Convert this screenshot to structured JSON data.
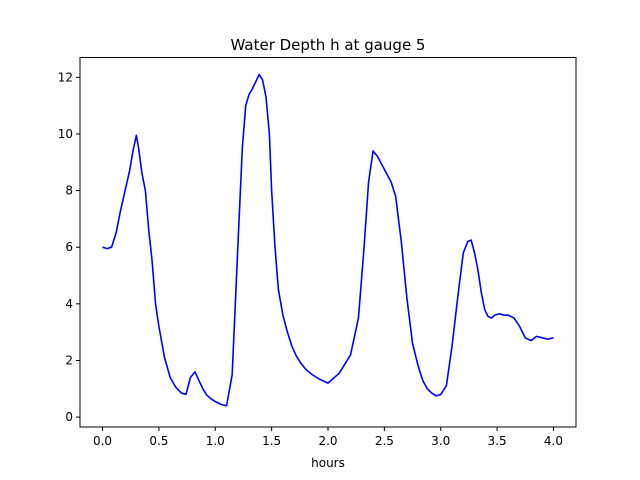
{
  "chart_data": {
    "type": "line",
    "title": "Water Depth h at gauge 5",
    "xlabel": "hours",
    "ylabel": "",
    "xlim": [
      -0.2,
      4.2
    ],
    "ylim": [
      -0.35,
      12.7
    ],
    "xticks": [
      0.0,
      0.5,
      1.0,
      1.5,
      2.0,
      2.5,
      3.0,
      3.5,
      4.0
    ],
    "xtick_labels": [
      "0.0",
      "0.5",
      "1.0",
      "1.5",
      "2.0",
      "2.5",
      "3.0",
      "3.5",
      "4.0"
    ],
    "yticks": [
      0,
      2,
      4,
      6,
      8,
      10,
      12
    ],
    "ytick_labels": [
      "0",
      "2",
      "4",
      "6",
      "8",
      "10",
      "12"
    ],
    "grid": false,
    "series": [
      {
        "color": "#0000ff",
        "x": [
          0.0,
          0.04,
          0.08,
          0.12,
          0.16,
          0.2,
          0.24,
          0.27,
          0.3,
          0.32,
          0.35,
          0.38,
          0.41,
          0.44,
          0.47,
          0.5,
          0.55,
          0.6,
          0.65,
          0.7,
          0.74,
          0.78,
          0.82,
          0.86,
          0.89,
          0.92,
          0.96,
          1.0,
          1.05,
          1.1,
          1.15,
          1.2,
          1.24,
          1.27,
          1.3,
          1.33,
          1.36,
          1.39,
          1.42,
          1.45,
          1.48,
          1.5,
          1.53,
          1.56,
          1.6,
          1.64,
          1.68,
          1.72,
          1.76,
          1.8,
          1.86,
          1.92,
          2.0,
          2.1,
          2.2,
          2.27,
          2.32,
          2.36,
          2.4,
          2.44,
          2.48,
          2.52,
          2.56,
          2.6,
          2.65,
          2.7,
          2.75,
          2.8,
          2.84,
          2.88,
          2.92,
          2.96,
          3.0,
          3.05,
          3.1,
          3.15,
          3.2,
          3.24,
          3.27,
          3.3,
          3.33,
          3.36,
          3.39,
          3.42,
          3.45,
          3.48,
          3.52,
          3.56,
          3.6,
          3.65,
          3.7,
          3.75,
          3.8,
          3.85,
          3.9,
          3.95,
          4.0
        ],
        "y": [
          6.0,
          5.95,
          6.0,
          6.5,
          7.3,
          8.0,
          8.7,
          9.4,
          9.95,
          9.5,
          8.6,
          8.0,
          6.6,
          5.5,
          4.0,
          3.2,
          2.1,
          1.4,
          1.05,
          0.85,
          0.8,
          1.4,
          1.6,
          1.25,
          1.0,
          0.8,
          0.65,
          0.55,
          0.45,
          0.4,
          1.5,
          6.0,
          9.5,
          11.0,
          11.4,
          11.6,
          11.85,
          12.1,
          11.9,
          11.3,
          10.0,
          8.0,
          6.0,
          4.5,
          3.6,
          3.0,
          2.5,
          2.15,
          1.9,
          1.7,
          1.5,
          1.35,
          1.2,
          1.55,
          2.2,
          3.5,
          6.0,
          8.3,
          9.4,
          9.2,
          8.9,
          8.6,
          8.3,
          7.8,
          6.2,
          4.2,
          2.6,
          1.8,
          1.3,
          1.0,
          0.85,
          0.75,
          0.8,
          1.1,
          2.5,
          4.2,
          5.8,
          6.2,
          6.25,
          5.8,
          5.2,
          4.4,
          3.8,
          3.55,
          3.5,
          3.6,
          3.65,
          3.6,
          3.6,
          3.5,
          3.2,
          2.8,
          2.7,
          2.85,
          2.8,
          2.75,
          2.8
        ]
      }
    ]
  }
}
